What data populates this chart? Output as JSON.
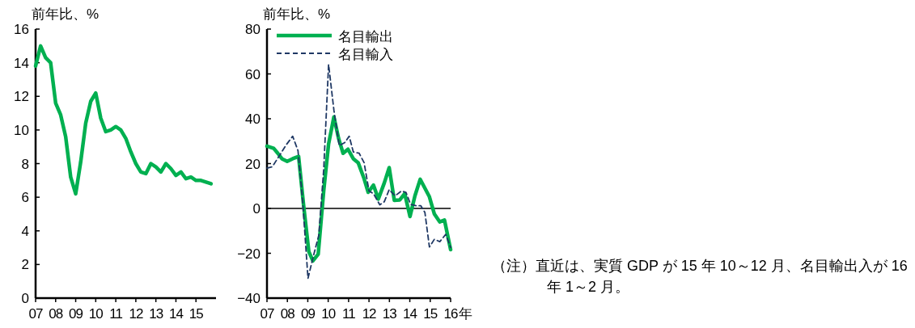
{
  "chart_data": [
    {
      "type": "line",
      "ylabel": "前年比、%",
      "xlim": [
        2007,
        2016
      ],
      "ylim": [
        0,
        16
      ],
      "xticks": [
        {
          "value": 2007,
          "label": "07"
        },
        {
          "value": 2008,
          "label": "08"
        },
        {
          "value": 2009,
          "label": "09"
        },
        {
          "value": 2010,
          "label": "10"
        },
        {
          "value": 2011,
          "label": "11"
        },
        {
          "value": 2012,
          "label": "12"
        },
        {
          "value": 2013,
          "label": "13"
        },
        {
          "value": 2014,
          "label": "14"
        },
        {
          "value": 2015,
          "label": "15"
        }
      ],
      "yticks": [
        0,
        2,
        4,
        6,
        8,
        10,
        12,
        14,
        16
      ],
      "grid": false,
      "legend": false,
      "x": [
        2007,
        2007.25,
        2007.5,
        2007.75,
        2008,
        2008.25,
        2008.5,
        2008.75,
        2009,
        2009.25,
        2009.5,
        2009.75,
        2010,
        2010.25,
        2010.5,
        2010.75,
        2011,
        2011.25,
        2011.5,
        2011.75,
        2012,
        2012.25,
        2012.5,
        2012.75,
        2013,
        2013.25,
        2013.5,
        2013.75,
        2014,
        2014.25,
        2014.5,
        2014.75,
        2015,
        2015.25,
        2015.5,
        2015.75
      ],
      "series": [
        {
          "color": "#00b050",
          "values": [
            13.8,
            15.0,
            14.3,
            14.0,
            11.6,
            10.9,
            9.6,
            7.2,
            6.2,
            8.1,
            10.4,
            11.7,
            12.2,
            10.7,
            9.9,
            10.0,
            10.2,
            10.0,
            9.5,
            8.7,
            8.0,
            7.5,
            7.4,
            8.0,
            7.8,
            7.5,
            8.0,
            7.7,
            7.3,
            7.5,
            7.1,
            7.2,
            7.0,
            7.0,
            6.9,
            6.8
          ]
        }
      ]
    },
    {
      "type": "line",
      "ylabel": "前年比、%",
      "xlim": [
        2007,
        2016
      ],
      "ylim": [
        -40,
        80
      ],
      "xticks": [
        {
          "value": 2007,
          "label": "07"
        },
        {
          "value": 2008,
          "label": "08"
        },
        {
          "value": 2009,
          "label": "09"
        },
        {
          "value": 2010,
          "label": "10"
        },
        {
          "value": 2011,
          "label": "11"
        },
        {
          "value": 2012,
          "label": "12"
        },
        {
          "value": 2013,
          "label": "13"
        },
        {
          "value": 2014,
          "label": "14"
        },
        {
          "value": 2015,
          "label": "15"
        },
        {
          "value": 2016,
          "label": "16"
        }
      ],
      "xlabel": "年",
      "yticks": [
        -40,
        -20,
        0,
        20,
        40,
        60,
        80
      ],
      "grid": false,
      "legend": "top left",
      "ref_lines": [
        {
          "axis": "y",
          "value": 0,
          "color": "#000000"
        }
      ],
      "series": [
        {
          "name": "名目輸出",
          "color": "#00b050",
          "line_style": "solid",
          "x": [
            2007,
            2007.33,
            2007.53,
            2007.73,
            2007.99,
            2008.26,
            2008.55,
            2008.79,
            2009.05,
            2009.25,
            2009.51,
            2009.78,
            2010.02,
            2010.28,
            2010.51,
            2010.73,
            2010.97,
            2011.23,
            2011.47,
            2011.74,
            2011.96,
            2012.22,
            2012.46,
            2012.75,
            2012.99,
            2013.24,
            2013.51,
            2013.75,
            2014.01,
            2014.25,
            2014.51,
            2014.74,
            2014.96,
            2015.2,
            2015.47,
            2015.7,
            2016
          ],
          "values": [
            27.8,
            26.8,
            24.6,
            22.2,
            21.0,
            22.2,
            23.2,
            1.8,
            -19.2,
            -23.4,
            -20.4,
            7.8,
            28.8,
            40.8,
            31.2,
            24.6,
            26.4,
            22.2,
            20.4,
            13.8,
            7.2,
            10.4,
            4.2,
            11.4,
            18.2,
            3.6,
            3.8,
            6.6,
            -3.6,
            5.6,
            13.0,
            9.0,
            5.2,
            -2.4,
            -6.0,
            -5.2,
            -18.4
          ]
        },
        {
          "name": "名目輸入",
          "color": "#1f3864",
          "line_style": "dashed",
          "x": [
            2007,
            2007.26,
            2007.6,
            2007.93,
            2008.26,
            2008.52,
            2008.75,
            2009.01,
            2009.28,
            2009.54,
            2009.78,
            2010.02,
            2010.28,
            2010.54,
            2010.81,
            2011.03,
            2011.23,
            2011.52,
            2011.76,
            2012,
            2012.22,
            2012.53,
            2012.75,
            2012.99,
            2013.28,
            2013.59,
            2013.81,
            2014.04,
            2014.3,
            2014.54,
            2014.74,
            2014.96,
            2015.2,
            2015.47,
            2015.76,
            2016
          ],
          "values": [
            18.0,
            18.6,
            23.4,
            28.2,
            32.2,
            25.8,
            3.0,
            -31.2,
            -21.0,
            -12.0,
            17.4,
            64.2,
            43.8,
            28.0,
            29.4,
            32.2,
            25.2,
            24.6,
            20.4,
            7.8,
            6.6,
            1.6,
            3.0,
            8.4,
            5.6,
            7.8,
            7.2,
            1.8,
            1.2,
            1.2,
            -1.8,
            -17.2,
            -13.8,
            -14.8,
            -11.6,
            -17.4
          ]
        }
      ],
      "annotations": [
        "（注）直近は、実質 GDP が 15 年 10～12 月、名目輸出入が 16 年 1～2 月。"
      ]
    }
  ]
}
